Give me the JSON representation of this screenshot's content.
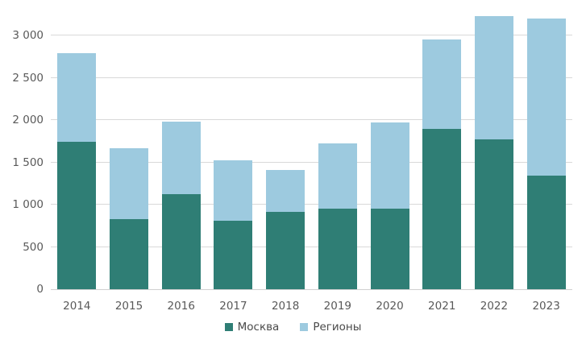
{
  "chart_data": {
    "type": "bar",
    "stacked": true,
    "title": "",
    "categories": [
      "2014",
      "2015",
      "2016",
      "2017",
      "2018",
      "2019",
      "2020",
      "2021",
      "2022",
      "2023"
    ],
    "series": [
      {
        "name": "Москва",
        "color": "#2f7e75",
        "values": [
          1740,
          830,
          1120,
          810,
          910,
          950,
          950,
          1900,
          1770,
          1340
        ]
      },
      {
        "name": "Регионы",
        "color": "#9dcadf",
        "values": [
          1050,
          840,
          860,
          710,
          500,
          770,
          1020,
          1050,
          1460,
          1860
        ]
      }
    ],
    "totals": [
      2790,
      1670,
      1980,
      1520,
      1410,
      1720,
      1970,
      2950,
      3230,
      3200
    ],
    "ylim": [
      0,
      3300
    ],
    "yticks": [
      0,
      500,
      1000,
      1500,
      2000,
      2500,
      3000
    ],
    "ytick_labels": [
      "0",
      "500",
      "1 000",
      "1 500",
      "2 000",
      "2 500",
      "3 000"
    ],
    "grid": true,
    "legend_position": "bottom",
    "gridline_color": "#d9d9d9",
    "tick_label_color": "#595959",
    "background_color": "#ffffff"
  },
  "legend": {
    "items": [
      {
        "label": "Москва",
        "color": "#2f7e75"
      },
      {
        "label": "Регионы",
        "color": "#9dcadf"
      }
    ]
  }
}
